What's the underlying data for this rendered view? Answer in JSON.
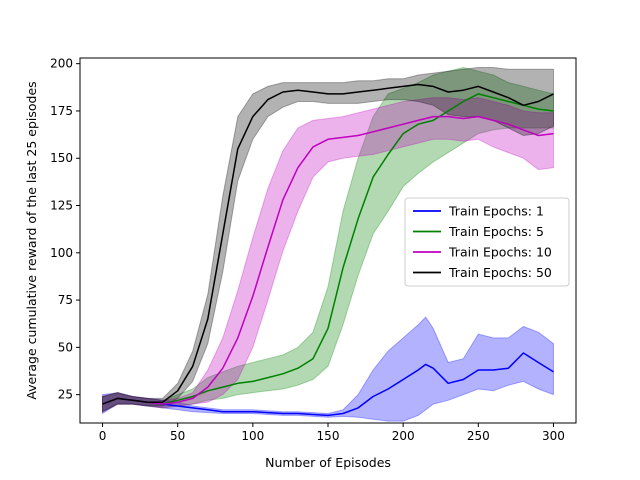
{
  "chart_data": {
    "type": "line",
    "xlabel": "Number of Episodes",
    "ylabel": "Average cumulative reward of the last 25 episodes",
    "xlim": [
      -15,
      315
    ],
    "ylim": [
      10,
      203
    ],
    "xticks": [
      "0",
      "50",
      "100",
      "150",
      "200",
      "250",
      "300"
    ],
    "yticks": [
      "25",
      "50",
      "75",
      "100",
      "125",
      "150",
      "175",
      "200"
    ],
    "grid": false,
    "legend_position": "center-right",
    "series": [
      {
        "name": "Train Epochs: 1",
        "color": "#0000ff",
        "band_color": "#0000ff",
        "x": [
          0,
          10,
          20,
          30,
          40,
          50,
          60,
          70,
          80,
          90,
          100,
          110,
          120,
          130,
          140,
          150,
          160,
          170,
          180,
          190,
          200,
          210,
          215,
          220,
          230,
          240,
          250,
          260,
          270,
          280,
          290,
          300
        ],
        "mean": [
          20,
          23,
          22,
          21,
          20,
          19,
          18,
          17,
          16,
          16,
          16,
          15.5,
          15,
          15,
          14.5,
          14,
          15,
          18,
          24,
          28,
          33,
          38,
          41,
          39,
          31,
          33,
          38,
          38,
          39,
          47,
          42,
          37
        ],
        "upper": [
          25,
          26,
          24,
          23,
          22,
          21,
          19,
          18,
          17,
          17,
          17,
          16.5,
          16,
          16,
          15.5,
          15,
          17,
          25,
          38,
          48,
          55,
          62,
          66,
          60,
          42,
          44,
          57,
          55,
          55,
          61,
          58,
          52
        ],
        "lower": [
          15,
          20,
          20,
          19,
          18,
          17,
          16,
          15.5,
          15,
          15,
          15,
          14.5,
          14,
          14,
          13.5,
          13,
          13.5,
          13,
          12,
          11,
          11,
          14,
          17,
          20,
          22,
          25,
          28,
          27,
          30,
          32,
          28,
          25
        ]
      },
      {
        "name": "Train Epochs: 5",
        "color": "#008000",
        "band_color": "#008000",
        "x": [
          0,
          10,
          20,
          30,
          40,
          50,
          60,
          70,
          80,
          90,
          100,
          110,
          120,
          130,
          140,
          150,
          160,
          170,
          180,
          190,
          200,
          210,
          220,
          230,
          240,
          250,
          260,
          270,
          280,
          290,
          300
        ],
        "mean": [
          20,
          23,
          22,
          21,
          20,
          22,
          24,
          27,
          29,
          31,
          32,
          34,
          36,
          39,
          44,
          60,
          92,
          118,
          140,
          152,
          163,
          168,
          170,
          175,
          180,
          184,
          182,
          180,
          178,
          176,
          175
        ],
        "upper": [
          24,
          26,
          24,
          23,
          22,
          25,
          28,
          34,
          37,
          40,
          42,
          44,
          46,
          50,
          58,
          82,
          122,
          150,
          172,
          184,
          187,
          190,
          194,
          196,
          198,
          196,
          194,
          190,
          188,
          186,
          184
        ],
        "lower": [
          16,
          20,
          20,
          19,
          18,
          19,
          20,
          22,
          23,
          25,
          26,
          27,
          28,
          30,
          33,
          40,
          62,
          88,
          110,
          122,
          135,
          142,
          148,
          153,
          158,
          163,
          165,
          166,
          166,
          166,
          166
        ]
      },
      {
        "name": "Train Epochs: 10",
        "color": "#bf00bf",
        "band_color": "#bf00bf",
        "x": [
          0,
          10,
          20,
          30,
          40,
          50,
          60,
          70,
          80,
          90,
          100,
          110,
          120,
          130,
          140,
          150,
          160,
          170,
          180,
          190,
          200,
          210,
          220,
          230,
          240,
          250,
          260,
          270,
          280,
          290,
          300
        ],
        "mean": [
          20,
          23,
          22,
          21,
          20,
          21,
          23,
          29,
          39,
          55,
          77,
          103,
          128,
          145,
          156,
          160,
          161,
          162,
          164,
          166,
          168,
          170,
          172,
          172,
          171,
          172,
          170,
          168,
          165,
          162,
          163
        ],
        "upper": [
          24,
          26,
          24,
          23,
          22,
          23,
          26,
          38,
          55,
          80,
          108,
          134,
          154,
          166,
          170,
          171,
          172,
          174,
          176,
          178,
          180,
          181,
          182,
          182,
          181,
          182,
          180,
          178,
          175,
          174,
          174
        ],
        "lower": [
          16,
          20,
          20,
          19,
          18,
          19,
          20,
          21,
          25,
          33,
          50,
          75,
          101,
          122,
          140,
          148,
          150,
          151,
          152,
          154,
          156,
          158,
          160,
          160,
          159,
          160,
          156,
          153,
          150,
          144,
          145
        ]
      },
      {
        "name": "Train Epochs: 50",
        "color": "#000000",
        "band_color": "#000000",
        "x": [
          0,
          10,
          20,
          30,
          40,
          50,
          60,
          70,
          80,
          90,
          100,
          110,
          120,
          130,
          140,
          150,
          160,
          170,
          180,
          190,
          200,
          210,
          220,
          230,
          240,
          250,
          260,
          270,
          280,
          290,
          300
        ],
        "mean": [
          20,
          23,
          22,
          21,
          21,
          27,
          40,
          65,
          110,
          155,
          172,
          181,
          185,
          186,
          185,
          184,
          184,
          185,
          186,
          187,
          188,
          189,
          188,
          185,
          186,
          188,
          185,
          182,
          178,
          180,
          184
        ],
        "upper": [
          24,
          26,
          24,
          23,
          23,
          31,
          48,
          78,
          130,
          172,
          184,
          188,
          190,
          190,
          190,
          190,
          190,
          191,
          191,
          192,
          192,
          194,
          195,
          196,
          197,
          198,
          198,
          197,
          197,
          197,
          197
        ],
        "lower": [
          16,
          20,
          20,
          19,
          19,
          23,
          32,
          52,
          90,
          138,
          160,
          172,
          177,
          180,
          180,
          179,
          179,
          179,
          180,
          181,
          181,
          180,
          178,
          173,
          172,
          172,
          170,
          166,
          162,
          163,
          167
        ]
      }
    ]
  }
}
